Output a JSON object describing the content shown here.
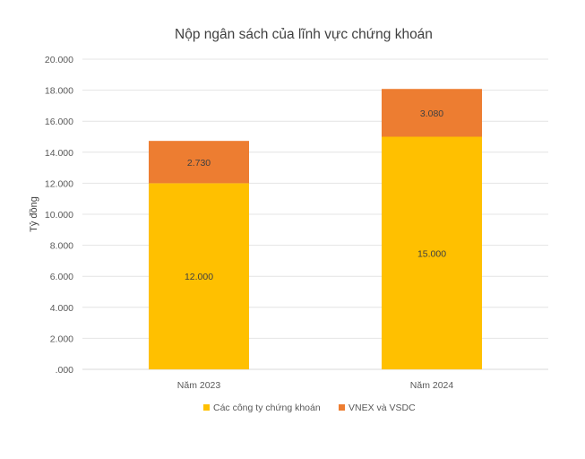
{
  "chart_data": {
    "type": "bar",
    "stacked": true,
    "title": "Nộp ngân sách của lĩnh vực chứng khoán",
    "xlabel": "",
    "ylabel": "Tỷ đồng",
    "ylim": [
      0,
      20000
    ],
    "yticks": [
      0,
      2000,
      4000,
      6000,
      8000,
      10000,
      12000,
      14000,
      16000,
      18000,
      20000
    ],
    "ytick_labels": [
      ".000",
      "2.000",
      "4.000",
      "6.000",
      "8.000",
      "10.000",
      "12.000",
      "14.000",
      "16.000",
      "18.000",
      "20.000"
    ],
    "categories": [
      "Năm 2023",
      "Năm 2024"
    ],
    "series": [
      {
        "name": "Các công ty chứng khoán",
        "color": "#FFC000",
        "values": [
          12000,
          15000
        ],
        "labels": [
          "12.000",
          "15.000"
        ]
      },
      {
        "name": "VNEX và VSDC",
        "color": "#ED7D31",
        "values": [
          2730,
          3080
        ],
        "labels": [
          "2.730",
          "3.080"
        ]
      }
    ],
    "grid": true,
    "legend_position": "bottom"
  }
}
